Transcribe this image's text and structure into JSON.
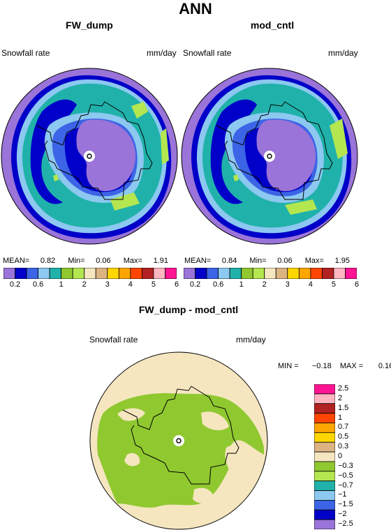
{
  "figure": {
    "main_title": "ANN",
    "panels": [
      {
        "id": "left",
        "title": "FW_dump",
        "field_label": "Snowfall rate",
        "units": "mm/day",
        "stats": {
          "mean_label": "MEAN=",
          "mean": "0.82",
          "min_label": "Min=",
          "min": "0.06",
          "max_label": "Max=",
          "max": "1.91"
        }
      },
      {
        "id": "right",
        "title": "mod_cntl",
        "field_label": "Snowfall rate",
        "units": "mm/day",
        "stats": {
          "mean_label": "MEAN=",
          "mean": "0.84",
          "min_label": "Min=",
          "min": "0.06",
          "max_label": "Max=",
          "max": "1.95"
        }
      },
      {
        "id": "diff",
        "title": "FW_dump - mod_cntl",
        "field_label": "Snowfall rate",
        "units": "mm/day",
        "stats": {
          "min_label": "MIN =",
          "min": "−0.18",
          "max_label": "MAX =",
          "max": "0.16"
        }
      }
    ]
  },
  "chart_data": [
    {
      "type": "heatmap",
      "projection": "south-polar-stereographic",
      "title": "FW_dump",
      "field": "Snowfall rate",
      "units": "mm/day",
      "stats": {
        "mean": 0.82,
        "min": 0.06,
        "max": 1.91
      },
      "colorbar": {
        "orientation": "horizontal",
        "tick_labels": [
          "0.2",
          "0.6",
          "1",
          "2",
          "3",
          "4",
          "5",
          "6"
        ],
        "colors": [
          "#9a74d8",
          "#0000c8",
          "#3c64e6",
          "#8cc8f0",
          "#20b2aa",
          "#90c830",
          "#b4e650",
          "#f5e6c0",
          "#dcb482",
          "#ffd700",
          "#ffa500",
          "#ff4500",
          "#b22222",
          "#ffb6c1",
          "#ff1493"
        ]
      }
    },
    {
      "type": "heatmap",
      "projection": "south-polar-stereographic",
      "title": "mod_cntl",
      "field": "Snowfall rate",
      "units": "mm/day",
      "stats": {
        "mean": 0.84,
        "min": 0.06,
        "max": 1.95
      },
      "colorbar": {
        "orientation": "horizontal",
        "tick_labels": [
          "0.2",
          "0.6",
          "1",
          "2",
          "3",
          "4",
          "5",
          "6"
        ],
        "colors": [
          "#9a74d8",
          "#0000c8",
          "#3c64e6",
          "#8cc8f0",
          "#20b2aa",
          "#90c830",
          "#b4e650",
          "#f5e6c0",
          "#dcb482",
          "#ffd700",
          "#ffa500",
          "#ff4500",
          "#b22222",
          "#ffb6c1",
          "#ff1493"
        ]
      }
    },
    {
      "type": "heatmap",
      "projection": "south-polar-stereographic",
      "title": "FW_dump - mod_cntl",
      "field": "Snowfall rate",
      "units": "mm/day",
      "stats": {
        "min": -0.18,
        "max": 0.16
      },
      "colorbar": {
        "orientation": "vertical",
        "tick_labels": [
          "2.5",
          "2",
          "1.5",
          "1",
          "0.7",
          "0.5",
          "0.3",
          "0",
          "−0.3",
          "−0.5",
          "−0.7",
          "−1",
          "−1.5",
          "−2",
          "−2.5"
        ],
        "colors_top_to_bottom": [
          "#ff1493",
          "#ffb6c1",
          "#b22222",
          "#ff4500",
          "#ffa500",
          "#ffd700",
          "#dcb482",
          "#f5e6c0",
          "#90c830",
          "#b4e650",
          "#20b2aa",
          "#8cc8f0",
          "#3c64e6",
          "#0000c8",
          "#9a74d8"
        ]
      }
    }
  ]
}
